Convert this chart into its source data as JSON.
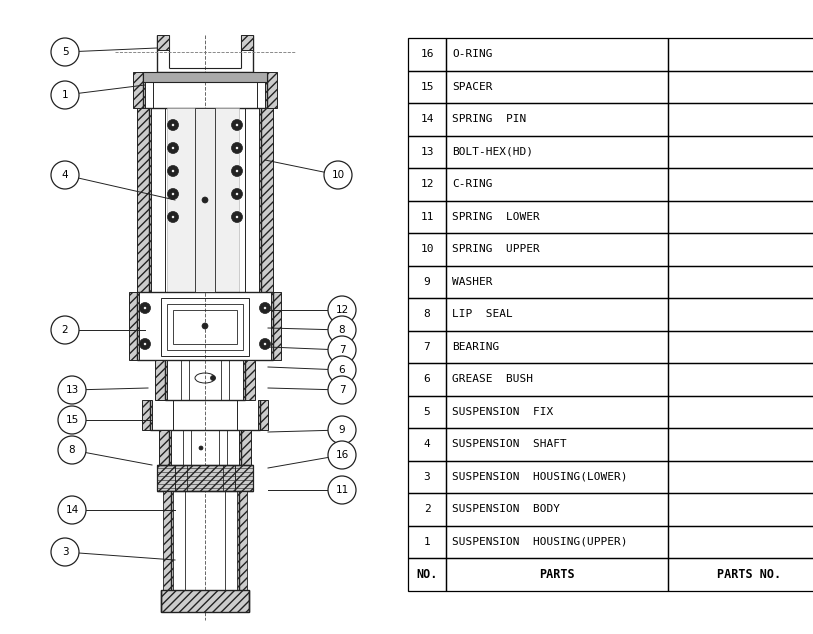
{
  "parts": [
    {
      "no": 16,
      "name": "O-RING"
    },
    {
      "no": 15,
      "name": "SPACER"
    },
    {
      "no": 14,
      "name": "SPRING  PIN"
    },
    {
      "no": 13,
      "name": "BOLT-HEX(HD)"
    },
    {
      "no": 12,
      "name": "C-RING"
    },
    {
      "no": 11,
      "name": "SPRING  LOWER"
    },
    {
      "no": 10,
      "name": "SPRING  UPPER"
    },
    {
      "no": 9,
      "name": "WASHER"
    },
    {
      "no": 8,
      "name": "LIP  SEAL"
    },
    {
      "no": 7,
      "name": "BEARING"
    },
    {
      "no": 6,
      "name": "GREASE  BUSH"
    },
    {
      "no": 5,
      "name": "SUSPENSION  FIX"
    },
    {
      "no": 4,
      "name": "SUSPENSION  SHAFT"
    },
    {
      "no": 3,
      "name": "SUSPENSION  HOUSING(LOWER)"
    },
    {
      "no": 2,
      "name": "SUSPENSION  BODY"
    },
    {
      "no": 1,
      "name": "SUSPENSION  HOUSING(UPPER)"
    }
  ],
  "header": {
    "no": "NO.",
    "parts": "PARTS",
    "parts_no": "PARTS NO."
  },
  "bg_color": "#ffffff",
  "line_color": "#000000",
  "font_color": "#000000",
  "draw_color": "#222222",
  "hatch_color": "#555555"
}
